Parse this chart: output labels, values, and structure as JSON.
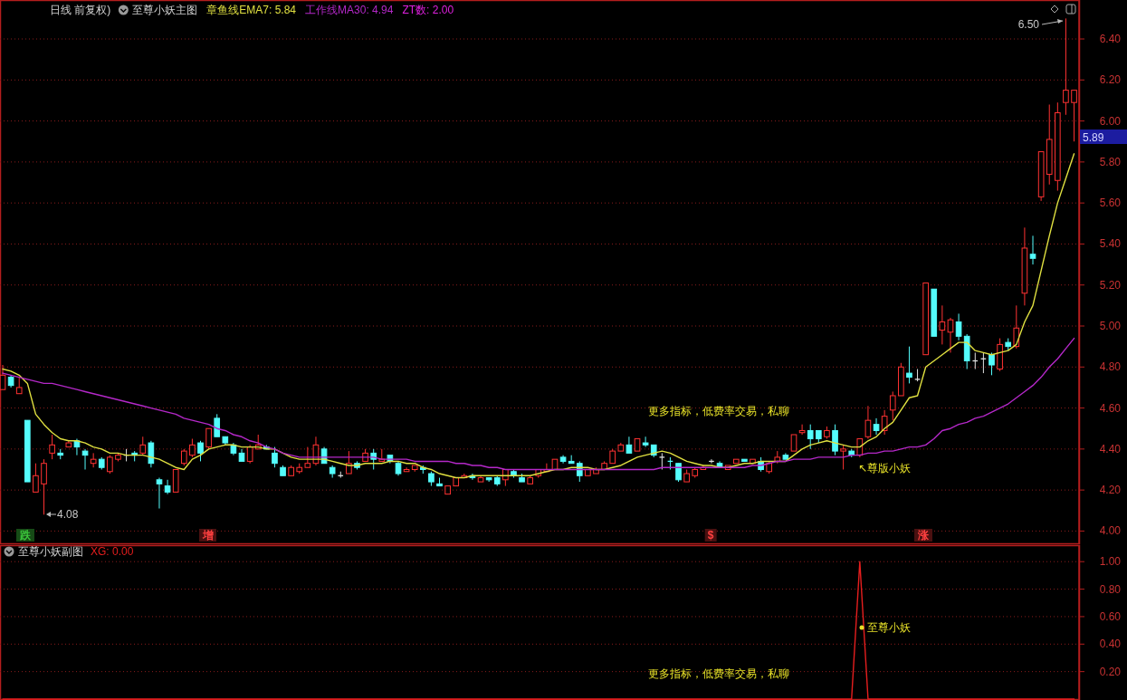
{
  "chart_data": [
    {
      "type": "candlestick",
      "title": "日线 前复权)",
      "subtitle": "至尊小妖主图",
      "categories": [
        null,
        null,
        null,
        null,
        null,
        null,
        null,
        null,
        null,
        null,
        null,
        null,
        null,
        null,
        null,
        null,
        null,
        null,
        null,
        null,
        null,
        null,
        null,
        null,
        null,
        null,
        null,
        null,
        null,
        null,
        null,
        null,
        null,
        null,
        null,
        null,
        null,
        null,
        null,
        null,
        null,
        null,
        null,
        null,
        null,
        null,
        null,
        null,
        null,
        null,
        null,
        null,
        null,
        null,
        null,
        null,
        null,
        null,
        null,
        null,
        null,
        null,
        null,
        null,
        null,
        null,
        null,
        null,
        null,
        null,
        null,
        null,
        null,
        null,
        null,
        null,
        null,
        null,
        null,
        null,
        null,
        null,
        null,
        null,
        null,
        null,
        null,
        null,
        null,
        null,
        null,
        null,
        null,
        null,
        null,
        null,
        null,
        null,
        null,
        null,
        null,
        null,
        null,
        null,
        null,
        null,
        null,
        null,
        null,
        null,
        null,
        null,
        null,
        null,
        null,
        null,
        null,
        null,
        null,
        null,
        null,
        null,
        null,
        null,
        null,
        null,
        null,
        null,
        null,
        null,
        null
      ],
      "ohlc": [
        [
          4.69,
          4.81,
          4.69,
          4.76
        ],
        [
          4.75,
          4.76,
          4.7,
          4.71
        ],
        [
          4.67,
          4.75,
          4.67,
          4.7
        ],
        [
          4.54,
          4.54,
          4.24,
          4.24
        ],
        [
          4.19,
          4.33,
          4.19,
          4.27
        ],
        [
          4.23,
          4.35,
          4.08,
          4.33
        ],
        [
          4.38,
          4.47,
          4.35,
          4.42
        ],
        [
          4.38,
          4.4,
          4.35,
          4.37
        ],
        [
          4.41,
          4.44,
          4.41,
          4.43
        ],
        [
          4.44,
          4.45,
          4.37,
          4.41
        ],
        [
          4.39,
          4.4,
          4.3,
          4.37
        ],
        [
          4.33,
          4.38,
          4.31,
          4.35
        ],
        [
          4.35,
          4.36,
          4.3,
          4.31
        ],
        [
          4.29,
          4.37,
          4.28,
          4.36
        ],
        [
          4.35,
          4.38,
          4.34,
          4.37
        ],
        [
          4.37,
          4.4,
          4.34,
          4.37
        ],
        [
          4.38,
          4.39,
          4.34,
          4.37
        ],
        [
          4.38,
          4.46,
          4.37,
          4.42
        ],
        [
          4.43,
          4.44,
          4.31,
          4.33
        ],
        [
          4.25,
          4.26,
          4.11,
          4.23
        ],
        [
          4.22,
          4.25,
          4.18,
          4.19
        ],
        [
          4.19,
          4.3,
          4.19,
          4.3
        ],
        [
          4.33,
          4.4,
          4.32,
          4.39
        ],
        [
          4.37,
          4.45,
          4.36,
          4.42
        ],
        [
          4.43,
          4.44,
          4.34,
          4.38
        ],
        [
          4.41,
          4.5,
          4.4,
          4.5
        ],
        [
          4.55,
          4.57,
          4.46,
          4.46
        ],
        [
          4.46,
          4.46,
          4.42,
          4.43
        ],
        [
          4.42,
          4.43,
          4.37,
          4.38
        ],
        [
          4.38,
          4.4,
          4.34,
          4.34
        ],
        [
          4.34,
          4.42,
          4.33,
          4.41
        ],
        [
          4.4,
          4.47,
          4.4,
          4.42
        ],
        [
          4.41,
          4.42,
          4.4,
          4.4
        ],
        [
          4.38,
          4.41,
          4.31,
          4.33
        ],
        [
          4.31,
          4.32,
          4.27,
          4.27
        ],
        [
          4.27,
          4.32,
          4.27,
          4.31
        ],
        [
          4.29,
          4.33,
          4.28,
          4.31
        ],
        [
          4.31,
          4.41,
          4.31,
          4.33
        ],
        [
          4.33,
          4.46,
          4.32,
          4.42
        ],
        [
          4.4,
          4.41,
          4.33,
          4.33
        ],
        [
          4.31,
          4.32,
          4.26,
          4.28
        ],
        [
          4.27,
          4.29,
          4.26,
          4.27
        ],
        [
          4.28,
          4.39,
          4.28,
          4.33
        ],
        [
          4.33,
          4.34,
          4.3,
          4.31
        ],
        [
          4.34,
          4.4,
          4.34,
          4.38
        ],
        [
          4.38,
          4.4,
          4.3,
          4.35
        ],
        [
          4.34,
          4.4,
          4.34,
          4.35
        ],
        [
          4.37,
          4.37,
          4.33,
          4.34
        ],
        [
          4.33,
          4.34,
          4.27,
          4.28
        ],
        [
          4.29,
          4.31,
          4.29,
          4.3
        ],
        [
          4.3,
          4.32,
          4.29,
          4.32
        ],
        [
          4.31,
          4.32,
          4.28,
          4.3
        ],
        [
          4.28,
          4.29,
          4.22,
          4.24
        ],
        [
          4.23,
          4.26,
          4.22,
          4.22
        ],
        [
          4.18,
          4.22,
          4.18,
          4.22
        ],
        [
          4.22,
          4.26,
          4.22,
          4.26
        ],
        [
          4.26,
          4.28,
          4.26,
          4.27
        ],
        [
          4.27,
          4.28,
          4.25,
          4.26
        ],
        [
          4.24,
          4.27,
          4.24,
          4.26
        ],
        [
          4.26,
          4.26,
          4.24,
          4.25
        ],
        [
          4.26,
          4.27,
          4.22,
          4.23
        ],
        [
          4.25,
          4.3,
          4.22,
          4.3
        ],
        [
          4.29,
          4.3,
          4.26,
          4.27
        ],
        [
          4.26,
          4.28,
          4.24,
          4.24
        ],
        [
          4.23,
          4.27,
          4.23,
          4.26
        ],
        [
          4.27,
          4.3,
          4.26,
          4.3
        ],
        [
          4.29,
          4.33,
          4.29,
          4.3
        ],
        [
          4.3,
          4.35,
          4.3,
          4.35
        ],
        [
          4.36,
          4.37,
          4.33,
          4.34
        ],
        [
          4.34,
          4.37,
          4.33,
          4.33
        ],
        [
          4.33,
          4.34,
          4.24,
          4.27
        ],
        [
          4.27,
          4.3,
          4.27,
          4.3
        ],
        [
          4.28,
          4.31,
          4.28,
          4.3
        ],
        [
          4.3,
          4.34,
          4.3,
          4.33
        ],
        [
          4.33,
          4.4,
          4.33,
          4.39
        ],
        [
          4.39,
          4.43,
          4.39,
          4.42
        ],
        [
          4.42,
          4.46,
          4.38,
          4.38
        ],
        [
          4.39,
          4.45,
          4.39,
          4.45
        ],
        [
          4.43,
          4.46,
          4.41,
          4.42
        ],
        [
          4.42,
          4.42,
          4.36,
          4.37
        ],
        [
          4.36,
          4.38,
          4.3,
          4.36
        ],
        [
          4.34,
          4.36,
          4.3,
          4.34
        ],
        [
          4.33,
          4.33,
          4.24,
          4.25
        ],
        [
          4.24,
          4.3,
          4.24,
          4.28
        ],
        [
          4.27,
          4.31,
          4.26,
          4.3
        ],
        [
          4.3,
          4.32,
          4.3,
          4.31
        ],
        [
          4.34,
          4.35,
          4.33,
          4.34
        ],
        [
          4.33,
          4.34,
          4.31,
          4.31
        ],
        [
          4.3,
          4.32,
          4.3,
          4.32
        ],
        [
          4.33,
          4.35,
          4.33,
          4.35
        ],
        [
          4.35,
          4.35,
          4.34,
          4.34
        ],
        [
          4.33,
          4.35,
          4.33,
          4.35
        ],
        [
          4.34,
          4.36,
          4.29,
          4.3
        ],
        [
          4.29,
          4.34,
          4.28,
          4.33
        ],
        [
          4.34,
          4.39,
          4.33,
          4.36
        ],
        [
          4.37,
          4.38,
          4.35,
          4.35
        ],
        [
          4.39,
          4.47,
          4.39,
          4.47
        ],
        [
          4.48,
          4.52,
          4.47,
          4.49
        ],
        [
          4.49,
          4.52,
          4.4,
          4.45
        ],
        [
          4.49,
          4.49,
          4.43,
          4.45
        ],
        [
          4.46,
          4.51,
          4.45,
          4.49
        ],
        [
          4.49,
          4.52,
          4.37,
          4.39
        ],
        [
          4.39,
          4.42,
          4.3,
          4.4
        ],
        [
          4.39,
          4.4,
          4.36,
          4.37
        ],
        [
          4.37,
          4.45,
          4.36,
          4.45
        ],
        [
          4.46,
          4.61,
          4.45,
          4.54
        ],
        [
          4.52,
          4.55,
          4.47,
          4.49
        ],
        [
          4.49,
          4.59,
          4.47,
          4.56
        ],
        [
          4.59,
          4.68,
          4.54,
          4.66
        ],
        [
          4.66,
          4.82,
          4.66,
          4.8
        ],
        [
          4.77,
          4.9,
          4.72,
          4.75
        ],
        [
          4.74,
          4.79,
          4.73,
          4.74
        ],
        [
          4.86,
          5.21,
          4.86,
          5.21
        ],
        [
          5.18,
          5.18,
          4.95,
          4.95
        ],
        [
          4.98,
          5.1,
          4.91,
          5.02
        ],
        [
          4.97,
          5.04,
          4.87,
          5.03
        ],
        [
          5.02,
          5.06,
          4.93,
          4.95
        ],
        [
          4.95,
          4.96,
          4.79,
          4.83
        ],
        [
          4.83,
          4.87,
          4.79,
          4.83
        ],
        [
          4.84,
          4.87,
          4.77,
          4.84
        ],
        [
          4.86,
          4.87,
          4.76,
          4.81
        ],
        [
          4.79,
          4.94,
          4.78,
          4.91
        ],
        [
          4.92,
          4.94,
          4.88,
          4.9
        ],
        [
          4.9,
          5.1,
          4.89,
          4.99
        ],
        [
          5.16,
          5.48,
          5.1,
          5.38
        ],
        [
          5.35,
          5.44,
          5.3,
          5.33
        ],
        [
          5.63,
          5.85,
          5.61,
          5.85
        ],
        [
          5.74,
          6.08,
          5.69,
          5.91
        ],
        [
          5.71,
          6.09,
          5.66,
          6.04
        ],
        [
          6.09,
          6.5,
          6.03,
          6.15
        ],
        [
          6.09,
          6.15,
          5.9,
          6.15
        ]
      ],
      "colors": [
        "#ff3232",
        "#54fcfc",
        "#ff3232",
        "#54fcfc",
        "#ff3232",
        "#ff3232",
        "#ff3232",
        "#54fcfc",
        "#ff3232",
        "#54fcfc",
        "#54fcfc",
        "#ff3232",
        "#54fcfc",
        "#ff3232",
        "#ff3232",
        "#e0e0e0",
        "#54fcfc",
        "#ff3232",
        "#54fcfc",
        "#54fcfc",
        "#54fcfc",
        "#ff3232",
        "#ff3232",
        "#ff3232",
        "#54fcfc",
        "#ff3232",
        "#54fcfc",
        "#54fcfc",
        "#54fcfc",
        "#54fcfc",
        "#ff3232",
        "#ff3232",
        "#54fcfc",
        "#54fcfc",
        "#54fcfc",
        "#ff3232",
        "#ff3232",
        "#ff3232",
        "#ff3232",
        "#54fcfc",
        "#54fcfc",
        "#e0e0e0",
        "#ff3232",
        "#54fcfc",
        "#ff3232",
        "#54fcfc",
        "#ff3232",
        "#54fcfc",
        "#54fcfc",
        "#ff3232",
        "#ff3232",
        "#54fcfc",
        "#54fcfc",
        "#54fcfc",
        "#ff3232",
        "#ff3232",
        "#ff3232",
        "#54fcfc",
        "#ff3232",
        "#54fcfc",
        "#54fcfc",
        "#ff3232",
        "#54fcfc",
        "#54fcfc",
        "#ff3232",
        "#ff3232",
        "#ff3232",
        "#ff3232",
        "#54fcfc",
        "#54fcfc",
        "#54fcfc",
        "#ff3232",
        "#ff3232",
        "#ff3232",
        "#ff3232",
        "#ff3232",
        "#54fcfc",
        "#ff3232",
        "#54fcfc",
        "#54fcfc",
        "#e0e0e0",
        "#54fcfc",
        "#54fcfc",
        "#ff3232",
        "#ff3232",
        "#ff3232",
        "#e0e0e0",
        "#54fcfc",
        "#ff3232",
        "#ff3232",
        "#54fcfc",
        "#ff3232",
        "#54fcfc",
        "#ff3232",
        "#ff3232",
        "#54fcfc",
        "#ff3232",
        "#ff3232",
        "#54fcfc",
        "#54fcfc",
        "#ff3232",
        "#54fcfc",
        "#ff3232",
        "#54fcfc",
        "#ff3232",
        "#ff3232",
        "#54fcfc",
        "#ff3232",
        "#ff3232",
        "#ff3232",
        "#54fcfc",
        "#e0e0e0",
        "#ff3232",
        "#54fcfc",
        "#ff3232",
        "#ff3232",
        "#54fcfc",
        "#54fcfc",
        "#e0e0e0",
        "#e0e0e0",
        "#54fcfc",
        "#ff3232",
        "#54fcfc",
        "#ff3232",
        "#ff3232",
        "#54fcfc",
        "#ff3232",
        "#ff3232",
        "#ff3232",
        "#ff3232",
        "#ff3232"
      ],
      "series": [
        {
          "name": "章鱼线EMA7: 5.84",
          "type": "line",
          "color": "#e0e040",
          "values": [
            4.79,
            4.78,
            4.76,
            4.72,
            4.57,
            4.52,
            4.48,
            4.45,
            4.44,
            4.44,
            4.43,
            4.41,
            4.4,
            4.38,
            4.38,
            4.37,
            4.37,
            4.37,
            4.36,
            4.35,
            4.33,
            4.31,
            4.3,
            4.35,
            4.37,
            4.4,
            4.41,
            4.42,
            4.42,
            4.41,
            4.41,
            4.41,
            4.4,
            4.4,
            4.38,
            4.36,
            4.35,
            4.35,
            4.35,
            4.35,
            4.34,
            4.33,
            4.32,
            4.32,
            4.33,
            4.33,
            4.33,
            4.34,
            4.34,
            4.33,
            4.33,
            4.31,
            4.3,
            4.28,
            4.27,
            4.26,
            4.26,
            4.27,
            4.27,
            4.27,
            4.27,
            4.27,
            4.27,
            4.27,
            4.27,
            4.28,
            4.29,
            4.3,
            4.3,
            4.31,
            4.31,
            4.31,
            4.3,
            4.3,
            4.31,
            4.32,
            4.34,
            4.36,
            4.37,
            4.38,
            4.39,
            4.38,
            4.36,
            4.34,
            4.33,
            4.32,
            4.32,
            4.31,
            4.31,
            4.32,
            4.33,
            4.33,
            4.34,
            4.34,
            4.34,
            4.34,
            4.37,
            4.4,
            4.42,
            4.43,
            4.44,
            4.43,
            4.42,
            4.41,
            4.41,
            4.44,
            4.46,
            4.5,
            4.53,
            4.59,
            4.65,
            4.66,
            4.8,
            4.83,
            4.86,
            4.89,
            4.92,
            4.92,
            4.88,
            4.87,
            4.86,
            4.87,
            4.88,
            4.91,
            5.02,
            5.1,
            5.27,
            5.44,
            5.6,
            5.72,
            5.84
          ]
        },
        {
          "name": "工作线MA30: 4.94",
          "type": "line",
          "color": "#b428c8",
          "values": [
            4.77,
            4.76,
            4.75,
            4.74,
            4.73,
            4.72,
            4.72,
            4.71,
            4.7,
            4.69,
            4.68,
            4.67,
            4.66,
            4.65,
            4.64,
            4.63,
            4.62,
            4.61,
            4.6,
            4.59,
            4.58,
            4.57,
            4.55,
            4.54,
            4.53,
            4.52,
            4.5,
            4.49,
            4.47,
            4.46,
            4.44,
            4.43,
            4.41,
            4.4,
            4.38,
            4.37,
            4.36,
            4.36,
            4.36,
            4.36,
            4.36,
            4.36,
            4.36,
            4.36,
            4.36,
            4.36,
            4.35,
            4.35,
            4.35,
            4.35,
            4.34,
            4.34,
            4.34,
            4.34,
            4.34,
            4.33,
            4.33,
            4.32,
            4.32,
            4.31,
            4.31,
            4.3,
            4.3,
            4.3,
            4.3,
            4.3,
            4.3,
            4.3,
            4.3,
            4.3,
            4.3,
            4.3,
            4.3,
            4.3,
            4.3,
            4.3,
            4.3,
            4.3,
            4.3,
            4.3,
            4.31,
            4.31,
            4.31,
            4.31,
            4.31,
            4.31,
            4.31,
            4.31,
            4.31,
            4.31,
            4.31,
            4.32,
            4.32,
            4.33,
            4.34,
            4.34,
            4.35,
            4.35,
            4.35,
            4.36,
            4.36,
            4.36,
            4.36,
            4.37,
            4.37,
            4.38,
            4.38,
            4.39,
            4.39,
            4.4,
            4.41,
            4.41,
            4.42,
            4.45,
            4.49,
            4.5,
            4.52,
            4.53,
            4.55,
            4.56,
            4.58,
            4.6,
            4.62,
            4.65,
            4.68,
            4.71,
            4.75,
            4.8,
            4.84,
            4.89,
            4.94
          ]
        }
      ],
      "ylim": [
        3.94,
        6.59
      ],
      "yticks": [
        {
          "value": 4.0,
          "label": "4.00"
        },
        {
          "value": 4.2,
          "label": "4.20"
        },
        {
          "value": 4.4,
          "label": "4.40"
        },
        {
          "value": 4.6,
          "label": "4.60"
        },
        {
          "value": 4.8,
          "label": "4.80"
        },
        {
          "value": 5.0,
          "label": "5.00"
        },
        {
          "value": 5.2,
          "label": "5.20"
        },
        {
          "value": 5.4,
          "label": "5.40"
        },
        {
          "value": 5.6,
          "label": "5.60"
        },
        {
          "value": 5.8,
          "label": "5.80"
        },
        {
          "value": 6.0,
          "label": "6.00"
        },
        {
          "value": 6.2,
          "label": "6.20"
        },
        {
          "value": 6.4,
          "label": "6.40"
        }
      ],
      "grid": "y",
      "legend": "top left",
      "annotations": [
        "ZT数: 2.00",
        "6.50",
        "4.08",
        "5.89",
        "更多指标，低费率交易，私聊",
        "↖尊版小妖",
        "跌",
        "增",
        "$",
        "涨"
      ]
    },
    {
      "type": "line",
      "title": "至尊小妖副图",
      "categories": [
        null,
        null,
        null,
        null,
        null,
        null,
        null,
        null,
        null,
        null,
        null,
        null,
        null,
        null,
        null,
        null,
        null,
        null,
        null,
        null,
        null,
        null,
        null,
        null,
        null,
        null,
        null,
        null,
        null,
        null,
        null,
        null,
        null,
        null,
        null,
        null,
        null,
        null,
        null,
        null,
        null,
        null,
        null,
        null,
        null,
        null,
        null,
        null,
        null,
        null,
        null,
        null,
        null,
        null,
        null,
        null,
        null,
        null,
        null,
        null,
        null,
        null,
        null,
        null,
        null,
        null,
        null,
        null,
        null,
        null,
        null,
        null,
        null,
        null,
        null,
        null,
        null,
        null,
        null,
        null,
        null,
        null,
        null,
        null,
        null,
        null,
        null,
        null,
        null,
        null,
        null,
        null,
        null,
        null,
        null,
        null,
        null,
        null,
        null,
        null,
        null,
        null,
        null,
        null,
        null,
        null,
        null,
        null,
        null,
        null,
        null,
        null,
        null,
        null,
        null,
        null,
        null,
        null,
        null,
        null,
        null,
        null,
        null,
        null,
        null,
        null,
        null,
        null,
        null,
        null,
        null
      ],
      "series": [
        {
          "name": "XG: 0.00",
          "color": "#e61e1e",
          "values": [
            0,
            0,
            0,
            0,
            0,
            0,
            0,
            0,
            0,
            0,
            0,
            0,
            0,
            0,
            0,
            0,
            0,
            0,
            0,
            0,
            0,
            0,
            0,
            0,
            0,
            0,
            0,
            0,
            0,
            0,
            0,
            0,
            0,
            0,
            0,
            0,
            0,
            0,
            0,
            0,
            0,
            0,
            0,
            0,
            0,
            0,
            0,
            0,
            0,
            0,
            0,
            0,
            0,
            0,
            0,
            0,
            0,
            0,
            0,
            0,
            0,
            0,
            0,
            0,
            0,
            0,
            0,
            0,
            0,
            0,
            0,
            0,
            0,
            0,
            0,
            0,
            0,
            0,
            0,
            0,
            0,
            0,
            0,
            0,
            0,
            0,
            0,
            0,
            0,
            0,
            0,
            0,
            0,
            0,
            0,
            0,
            0,
            0,
            0,
            0,
            0,
            0,
            0,
            0,
            1,
            0,
            0,
            0,
            0,
            0,
            0,
            0,
            0,
            0,
            0,
            0,
            0,
            0,
            0,
            0,
            0,
            0,
            0,
            0,
            0,
            0,
            0,
            0,
            0,
            0,
            0
          ]
        }
      ],
      "ylim": [
        0,
        1.12
      ],
      "yticks": [
        {
          "value": 0.2,
          "label": "0.20"
        },
        {
          "value": 0.4,
          "label": "0.40"
        },
        {
          "value": 0.6,
          "label": "0.60"
        },
        {
          "value": 0.8,
          "label": "0.80"
        },
        {
          "value": 1.0,
          "label": "1.00"
        }
      ],
      "grid": "y",
      "legend": "top left",
      "annotations": [
        "至尊小妖",
        "更多指标，低费率交易，私聊"
      ]
    }
  ]
}
